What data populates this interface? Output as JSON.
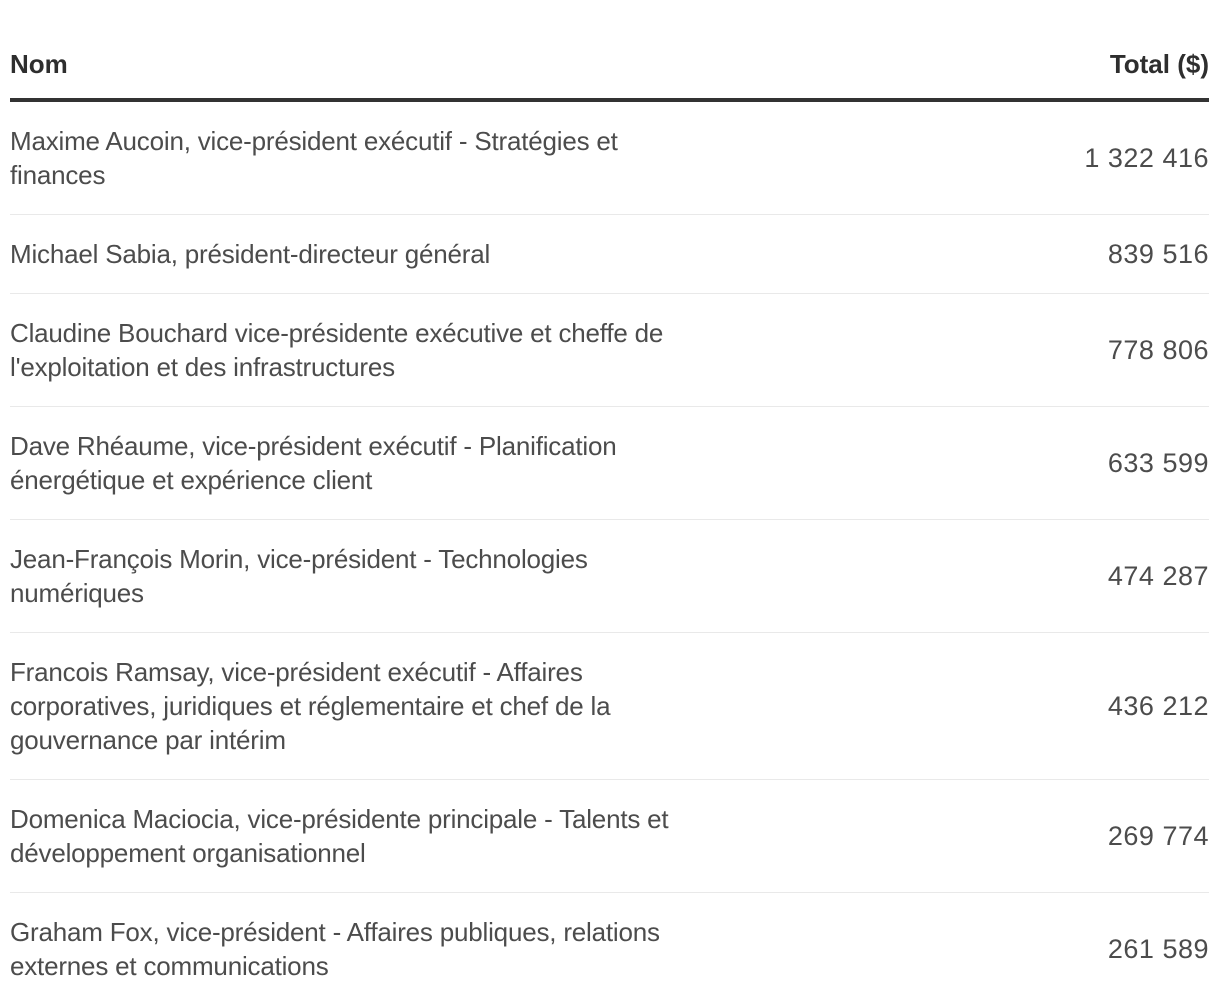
{
  "chart_data": {
    "type": "table",
    "columns": [
      "Nom",
      "Total ($)"
    ],
    "rows": [
      {
        "name": "Maxime Aucoin, vice-président exécutif - Stratégies et finances",
        "total": "1 322 416",
        "total_value": 1322416
      },
      {
        "name": "Michael Sabia, président-directeur général",
        "total": "839 516",
        "total_value": 839516
      },
      {
        "name": "Claudine Bouchard vice-présidente exécutive et cheffe de l'exploitation et des infrastructures",
        "total": "778 806",
        "total_value": 778806
      },
      {
        "name": "Dave Rhéaume, vice-président exécutif - Planification énergétique et expérience client",
        "total": "633 599",
        "total_value": 633599
      },
      {
        "name": "Jean-François Morin, vice-président - Technologies numériques",
        "total": "474 287",
        "total_value": 474287
      },
      {
        "name": "Francois Ramsay, vice-président exécutif - Affaires corporatives, juridiques et réglementaire et chef de la gouvernance par intérim",
        "total": "436 212",
        "total_value": 436212
      },
      {
        "name": "Domenica Maciocia, vice-présidente principale - Talents et développement organisationnel",
        "total": "269 774",
        "total_value": 269774
      },
      {
        "name": "Graham Fox, vice-président - Affaires publiques, relations externes et communications",
        "total": "261 589",
        "total_value": 261589
      }
    ]
  },
  "header": {
    "name_label": "Nom",
    "total_label": "Total ($)"
  },
  "colors": {
    "background": "#ffffff",
    "header_text": "#2e2e2e",
    "body_text": "#4c4c4c",
    "header_border": "#333333",
    "row_border": "#e9e9e9"
  }
}
